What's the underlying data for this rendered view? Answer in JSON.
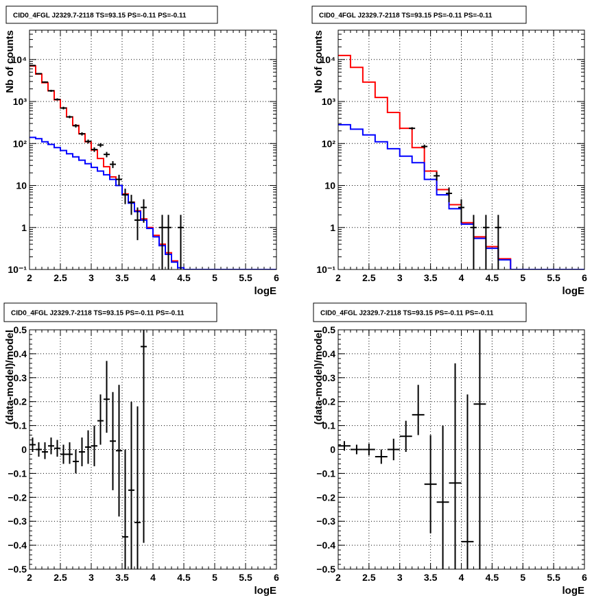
{
  "chart_data": [
    {
      "type": "line",
      "title": "CID0_4FGL J2329.7-2118 TS=93.15 PS=-0.11 PS=-0.11",
      "xlabel": "logE",
      "ylabel": "Nb of counts",
      "yscale": "log",
      "xlim": [
        2,
        6
      ],
      "ylim": [
        0.1,
        50000
      ],
      "grid": true,
      "xticks": [
        "2",
        "2.5",
        "3",
        "3.5",
        "4",
        "4.5",
        "5",
        "5.5",
        "6"
      ],
      "yticks": [
        {
          "value": 0.1,
          "label": "10⁻¹"
        },
        {
          "value": 1,
          "label": "1"
        },
        {
          "value": 10,
          "label": "10"
        },
        {
          "value": 100,
          "label": "10²"
        },
        {
          "value": 1000,
          "label": "10³"
        },
        {
          "value": 10000,
          "label": "10⁴"
        }
      ],
      "bin_edges": [
        2.0,
        2.1,
        2.2,
        2.3,
        2.4,
        2.5,
        2.6,
        2.7,
        2.8,
        2.9,
        3.0,
        3.1,
        3.2,
        3.3,
        3.4,
        3.5,
        3.6,
        3.7,
        3.8,
        3.9,
        4.0,
        4.1,
        4.2,
        4.3,
        4.4,
        4.5,
        4.6,
        4.7,
        4.8,
        4.9,
        5.0,
        5.1,
        5.2,
        5.3,
        5.4,
        5.5,
        5.6,
        5.7,
        5.8,
        5.9,
        6.0
      ],
      "series": [
        {
          "color": "#ff0000",
          "style": "step",
          "values": [
            7000,
            4500,
            2800,
            1800,
            1100,
            700,
            430,
            270,
            170,
            110,
            70,
            44,
            28,
            16,
            10,
            6.3,
            4.0,
            2.5,
            1.6,
            1.0,
            0.65,
            0.4,
            0.25,
            0.16,
            0.11,
            0.1,
            0.1,
            0.1,
            0.1,
            0.1,
            0.1,
            0.1,
            0.1,
            0.1,
            0.1,
            0.1,
            0.1,
            0.1,
            0.1,
            0.1
          ]
        },
        {
          "color": "#0000ff",
          "style": "step",
          "values": [
            140,
            130,
            110,
            95,
            80,
            68,
            57,
            48,
            40,
            33,
            27,
            22,
            18,
            14,
            10,
            6,
            3.8,
            2.4,
            1.5,
            0.95,
            0.6,
            0.37,
            0.23,
            0.15,
            0.11,
            0.1,
            0.1,
            0.1,
            0.1,
            0.1,
            0.1,
            0.1,
            0.1,
            0.1,
            0.1,
            0.1,
            0.1,
            0.1,
            0.1,
            0.1
          ]
        },
        {
          "color": "#000000",
          "style": "errorbar",
          "points": [
            {
              "x": 2.05,
              "y": 7200,
              "lo": 7000,
              "hi": 7400
            },
            {
              "x": 2.15,
              "y": 4600,
              "lo": 4450,
              "hi": 4750
            },
            {
              "x": 2.25,
              "y": 2900,
              "lo": 2800,
              "hi": 3000
            },
            {
              "x": 2.35,
              "y": 1800,
              "lo": 1700,
              "hi": 1900
            },
            {
              "x": 2.45,
              "y": 1120,
              "lo": 1050,
              "hi": 1190
            },
            {
              "x": 2.55,
              "y": 700,
              "lo": 650,
              "hi": 750
            },
            {
              "x": 2.65,
              "y": 430,
              "lo": 400,
              "hi": 460
            },
            {
              "x": 2.75,
              "y": 265,
              "lo": 240,
              "hi": 290
            },
            {
              "x": 2.85,
              "y": 170,
              "lo": 155,
              "hi": 185
            },
            {
              "x": 2.95,
              "y": 112,
              "lo": 100,
              "hi": 124
            },
            {
              "x": 3.05,
              "y": 72,
              "lo": 63,
              "hi": 81
            },
            {
              "x": 3.15,
              "y": 92,
              "lo": 82,
              "hi": 102
            },
            {
              "x": 3.25,
              "y": 55,
              "lo": 47,
              "hi": 63
            },
            {
              "x": 3.35,
              "y": 32,
              "lo": 26,
              "hi": 38
            },
            {
              "x": 3.45,
              "y": 14,
              "lo": 10,
              "hi": 18
            },
            {
              "x": 3.55,
              "y": 6,
              "lo": 3.6,
              "hi": 8.4
            },
            {
              "x": 3.65,
              "y": 4,
              "lo": 2.0,
              "hi": 6.0
            },
            {
              "x": 3.75,
              "y": 1.5,
              "lo": 0.5,
              "hi": 3.0
            },
            {
              "x": 3.85,
              "y": 3,
              "lo": 1.3,
              "hi": 4.7
            },
            {
              "x": 4.15,
              "y": 1,
              "lo": 0.1,
              "hi": 2.0
            },
            {
              "x": 4.25,
              "y": 1,
              "lo": 0.1,
              "hi": 2.0
            },
            {
              "x": 4.45,
              "y": 1,
              "lo": 0.1,
              "hi": 2.0
            }
          ]
        }
      ]
    },
    {
      "type": "line",
      "title": "CID0_4FGL J2329.7-2118 TS=93.15 PS=-0.11 PS=-0.11",
      "xlabel": "logE",
      "ylabel": "Nb of counts",
      "yscale": "log",
      "xlim": [
        2,
        6
      ],
      "ylim": [
        0.1,
        50000
      ],
      "grid": true,
      "xticks": [
        "2",
        "2.5",
        "3",
        "3.5",
        "4",
        "4.5",
        "5",
        "5.5",
        "6"
      ],
      "yticks": [
        {
          "value": 0.1,
          "label": "10⁻¹"
        },
        {
          "value": 1,
          "label": "1"
        },
        {
          "value": 10,
          "label": "10"
        },
        {
          "value": 100,
          "label": "10²"
        },
        {
          "value": 1000,
          "label": "10³"
        },
        {
          "value": 10000,
          "label": "10⁴"
        }
      ],
      "bin_edges": [
        2.0,
        2.2,
        2.4,
        2.6,
        2.8,
        3.0,
        3.2,
        3.4,
        3.6,
        3.8,
        4.0,
        4.2,
        4.4,
        4.6,
        4.8,
        5.0,
        5.2,
        5.4,
        5.6,
        5.8,
        6.0
      ],
      "series": [
        {
          "color": "#ff0000",
          "style": "step",
          "values": [
            12500,
            6500,
            2900,
            1250,
            550,
            230,
            80,
            22,
            8,
            3.5,
            1.3,
            0.6,
            0.35,
            0.18,
            0.1,
            0.1,
            0.1,
            0.1,
            0.1,
            0.1
          ]
        },
        {
          "color": "#0000ff",
          "style": "step",
          "values": [
            280,
            220,
            160,
            110,
            75,
            50,
            35,
            14,
            6,
            2.8,
            1.2,
            0.55,
            0.32,
            0.17,
            0.1,
            0.1,
            0.1,
            0.1,
            0.1,
            0.1
          ]
        },
        {
          "color": "#000000",
          "style": "errorbar",
          "points": [
            {
              "x": 3.2,
              "y": 230,
              "lo": 215,
              "hi": 245
            },
            {
              "x": 3.4,
              "y": 85,
              "lo": 76,
              "hi": 94
            },
            {
              "x": 3.6,
              "y": 17,
              "lo": 13,
              "hi": 21
            },
            {
              "x": 3.8,
              "y": 6.5,
              "lo": 4.0,
              "hi": 9.0
            },
            {
              "x": 4.0,
              "y": 3,
              "lo": 1.3,
              "hi": 4.7
            },
            {
              "x": 4.2,
              "y": 1,
              "lo": 0.1,
              "hi": 2.0
            },
            {
              "x": 4.4,
              "y": 1,
              "lo": 0.1,
              "hi": 2.0
            },
            {
              "x": 4.6,
              "y": 1,
              "lo": 0.1,
              "hi": 2.0
            }
          ]
        }
      ]
    },
    {
      "type": "scatter",
      "title": "CID0_4FGL J2329.7-2118 TS=93.15 PS=-0.11 PS=-0.11",
      "xlabel": "logE",
      "ylabel": "(data-model)/model",
      "yscale": "linear",
      "xlim": [
        2,
        6
      ],
      "ylim": [
        -0.5,
        0.5
      ],
      "grid": true,
      "xticks": [
        "2",
        "2.5",
        "3",
        "3.5",
        "4",
        "4.5",
        "5",
        "5.5",
        "6"
      ],
      "yticks": [
        {
          "value": -0.5,
          "label": "−0.5"
        },
        {
          "value": -0.4,
          "label": "−0.4"
        },
        {
          "value": -0.3,
          "label": "−0.3"
        },
        {
          "value": -0.2,
          "label": "−0.2"
        },
        {
          "value": -0.1,
          "label": "−0.1"
        },
        {
          "value": 0,
          "label": "0"
        },
        {
          "value": 0.1,
          "label": "0.1"
        },
        {
          "value": 0.2,
          "label": "0.2"
        },
        {
          "value": 0.3,
          "label": "0.3"
        },
        {
          "value": 0.4,
          "label": "0.4"
        },
        {
          "value": 0.5,
          "label": "0.5"
        }
      ],
      "series": [
        {
          "color": "#000000",
          "style": "errorbar",
          "xhalf": 0.05,
          "points": [
            {
              "x": 2.05,
              "y": 0.02,
              "lo": -0.01,
              "hi": 0.05
            },
            {
              "x": 2.15,
              "y": 0.0,
              "lo": -0.03,
              "hi": 0.03
            },
            {
              "x": 2.25,
              "y": -0.01,
              "lo": -0.04,
              "hi": 0.03
            },
            {
              "x": 2.35,
              "y": 0.015,
              "lo": -0.02,
              "hi": 0.05
            },
            {
              "x": 2.45,
              "y": 0.005,
              "lo": -0.03,
              "hi": 0.04
            },
            {
              "x": 2.55,
              "y": -0.02,
              "lo": -0.06,
              "hi": 0.02
            },
            {
              "x": 2.65,
              "y": -0.02,
              "lo": -0.06,
              "hi": 0.03
            },
            {
              "x": 2.75,
              "y": -0.05,
              "lo": -0.1,
              "hi": 0.0
            },
            {
              "x": 2.85,
              "y": -0.01,
              "lo": -0.07,
              "hi": 0.05
            },
            {
              "x": 2.95,
              "y": 0.01,
              "lo": -0.06,
              "hi": 0.08
            },
            {
              "x": 3.05,
              "y": 0.015,
              "lo": -0.07,
              "hi": 0.1
            },
            {
              "x": 3.15,
              "y": 0.12,
              "lo": 0.02,
              "hi": 0.23
            },
            {
              "x": 3.25,
              "y": 0.21,
              "lo": 0.07,
              "hi": 0.37
            },
            {
              "x": 3.35,
              "y": 0.035,
              "lo": -0.17,
              "hi": 0.24
            },
            {
              "x": 3.45,
              "y": -0.005,
              "lo": -0.28,
              "hi": 0.27
            },
            {
              "x": 3.55,
              "y": -0.365,
              "lo": -0.5,
              "hi": 0.0
            },
            {
              "x": 3.65,
              "y": -0.17,
              "lo": -0.5,
              "hi": 0.2
            },
            {
              "x": 3.75,
              "y": -0.305,
              "lo": -0.5,
              "hi": 0.18
            },
            {
              "x": 3.85,
              "y": 0.43,
              "lo": -0.39,
              "hi": 0.5
            }
          ]
        }
      ]
    },
    {
      "type": "scatter",
      "title": "CID0_4FGL J2329.7-2118 TS=93.15 PS=-0.11 PS=-0.11",
      "xlabel": "logE",
      "ylabel": "(data-model)/model",
      "yscale": "linear",
      "xlim": [
        2,
        6
      ],
      "ylim": [
        -0.5,
        0.5
      ],
      "grid": true,
      "xticks": [
        "2",
        "2.5",
        "3",
        "3.5",
        "4",
        "4.5",
        "5",
        "5.5",
        "6"
      ],
      "yticks": [
        {
          "value": -0.5,
          "label": "−0.5"
        },
        {
          "value": -0.4,
          "label": "−0.4"
        },
        {
          "value": -0.3,
          "label": "−0.3"
        },
        {
          "value": -0.2,
          "label": "−0.2"
        },
        {
          "value": -0.1,
          "label": "−0.1"
        },
        {
          "value": 0,
          "label": "0"
        },
        {
          "value": 0.1,
          "label": "0.1"
        },
        {
          "value": 0.2,
          "label": "0.2"
        },
        {
          "value": 0.3,
          "label": "0.3"
        },
        {
          "value": 0.4,
          "label": "0.4"
        },
        {
          "value": 0.5,
          "label": "0.5"
        }
      ],
      "series": [
        {
          "color": "#000000",
          "style": "errorbar",
          "xhalf": 0.1,
          "points": [
            {
              "x": 2.1,
              "y": 0.015,
              "lo": -0.005,
              "hi": 0.035
            },
            {
              "x": 2.3,
              "y": 0.0,
              "lo": -0.02,
              "hi": 0.02
            },
            {
              "x": 2.5,
              "y": 0.0,
              "lo": -0.025,
              "hi": 0.025
            },
            {
              "x": 2.7,
              "y": -0.03,
              "lo": -0.06,
              "hi": 0.0
            },
            {
              "x": 2.9,
              "y": 0.0,
              "lo": -0.045,
              "hi": 0.045
            },
            {
              "x": 3.1,
              "y": 0.055,
              "lo": -0.01,
              "hi": 0.12
            },
            {
              "x": 3.3,
              "y": 0.145,
              "lo": 0.06,
              "hi": 0.27
            },
            {
              "x": 3.5,
              "y": -0.145,
              "lo": -0.35,
              "hi": 0.06
            },
            {
              "x": 3.7,
              "y": -0.22,
              "lo": -0.5,
              "hi": 0.1
            },
            {
              "x": 3.9,
              "y": -0.14,
              "lo": -0.5,
              "hi": 0.36
            },
            {
              "x": 4.1,
              "y": -0.385,
              "lo": -0.5,
              "hi": 0.23
            },
            {
              "x": 4.3,
              "y": 0.19,
              "lo": -0.5,
              "hi": 0.5
            }
          ]
        }
      ]
    }
  ]
}
